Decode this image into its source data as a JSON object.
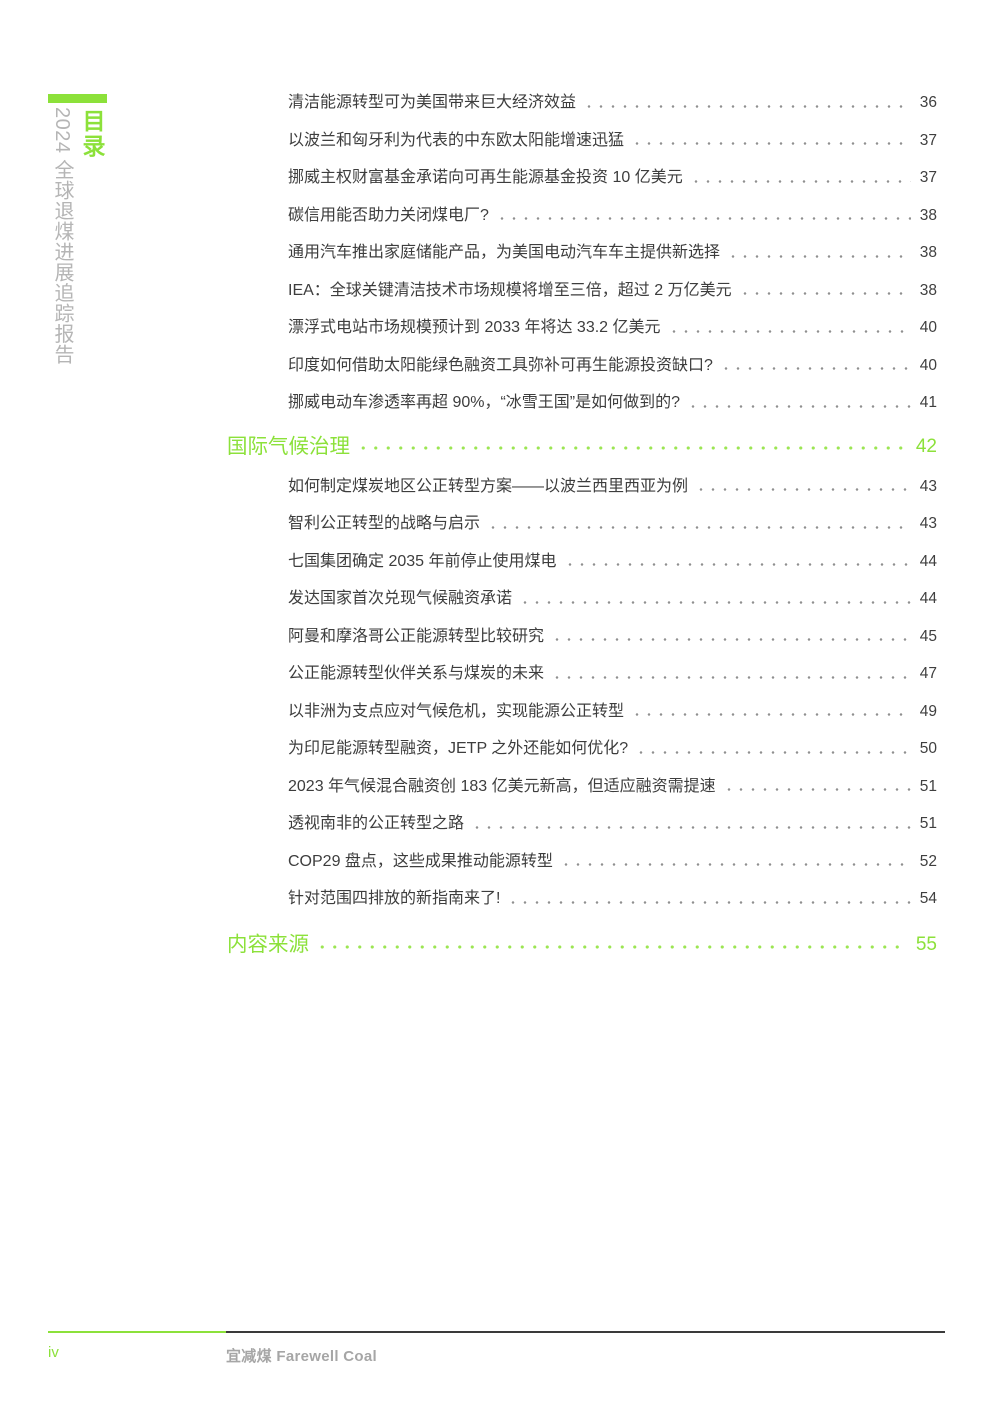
{
  "colors": {
    "accent_green": "#8ce13a",
    "body_text": "#3d3d3d",
    "sidebar_gray": "#b5b5b5",
    "footer_gray": "#a6a6a6",
    "footer_rule_dark": "#3a3a3a"
  },
  "sidebar": {
    "toc_label": "目录",
    "report_title_vertical": "2024 全球退煤进展追踪报告"
  },
  "toc": {
    "sections": [
      {
        "title": "",
        "page": "",
        "entries": [
          {
            "title": "清洁能源转型可为美国带来巨大经济效益",
            "page": "36"
          },
          {
            "title": "以波兰和匈牙利为代表的中东欧太阳能增速迅猛",
            "page": "37"
          },
          {
            "title": "挪威主权财富基金承诺向可再生能源基金投资 10 亿美元",
            "page": "37"
          },
          {
            "title": "碳信用能否助力关闭煤电厂?",
            "page": "38"
          },
          {
            "title": "通用汽车推出家庭储能产品，为美国电动汽车车主提供新选择",
            "page": "38"
          },
          {
            "title": "IEA：全球关键清洁技术市场规模将增至三倍，超过 2 万亿美元",
            "page": "38"
          },
          {
            "title": "漂浮式电站市场规模预计到 2033 年将达 33.2 亿美元",
            "page": "40"
          },
          {
            "title": "印度如何借助太阳能绿色融资工具弥补可再生能源投资缺口?",
            "page": "40"
          },
          {
            "title": "挪威电动车渗透率再超 90%，“冰雪王国”是如何做到的?",
            "page": "41"
          }
        ]
      },
      {
        "title": "国际气候治理",
        "page": "42",
        "entries": [
          {
            "title": "如何制定煤炭地区公正转型方案——以波兰西里西亚为例",
            "page": "43"
          },
          {
            "title": "智利公正转型的战略与启示",
            "page": "43"
          },
          {
            "title": "七国集团确定 2035 年前停止使用煤电",
            "page": "44"
          },
          {
            "title": "发达国家首次兑现气候融资承诺",
            "page": "44"
          },
          {
            "title": "阿曼和摩洛哥公正能源转型比较研究",
            "page": "45"
          },
          {
            "title": "公正能源转型伙伴关系与煤炭的未来",
            "page": "47"
          },
          {
            "title": "以非洲为支点应对气候危机，实现能源公正转型",
            "page": "49"
          },
          {
            "title": "为印尼能源转型融资，JETP 之外还能如何优化?",
            "page": "50"
          },
          {
            "title": "2023 年气候混合融资创 183 亿美元新高，但适应融资需提速",
            "page": "51"
          },
          {
            "title": "透视南非的公正转型之路",
            "page": "51"
          },
          {
            "title": "COP29 盘点，这些成果推动能源转型",
            "page": "52"
          },
          {
            "title": "针对范围四排放的新指南来了!",
            "page": "54"
          }
        ]
      },
      {
        "title": "内容来源",
        "page": "55",
        "entries": []
      }
    ]
  },
  "footer": {
    "page_number": "iv",
    "brand": "宜减煤 Farewell Coal"
  }
}
